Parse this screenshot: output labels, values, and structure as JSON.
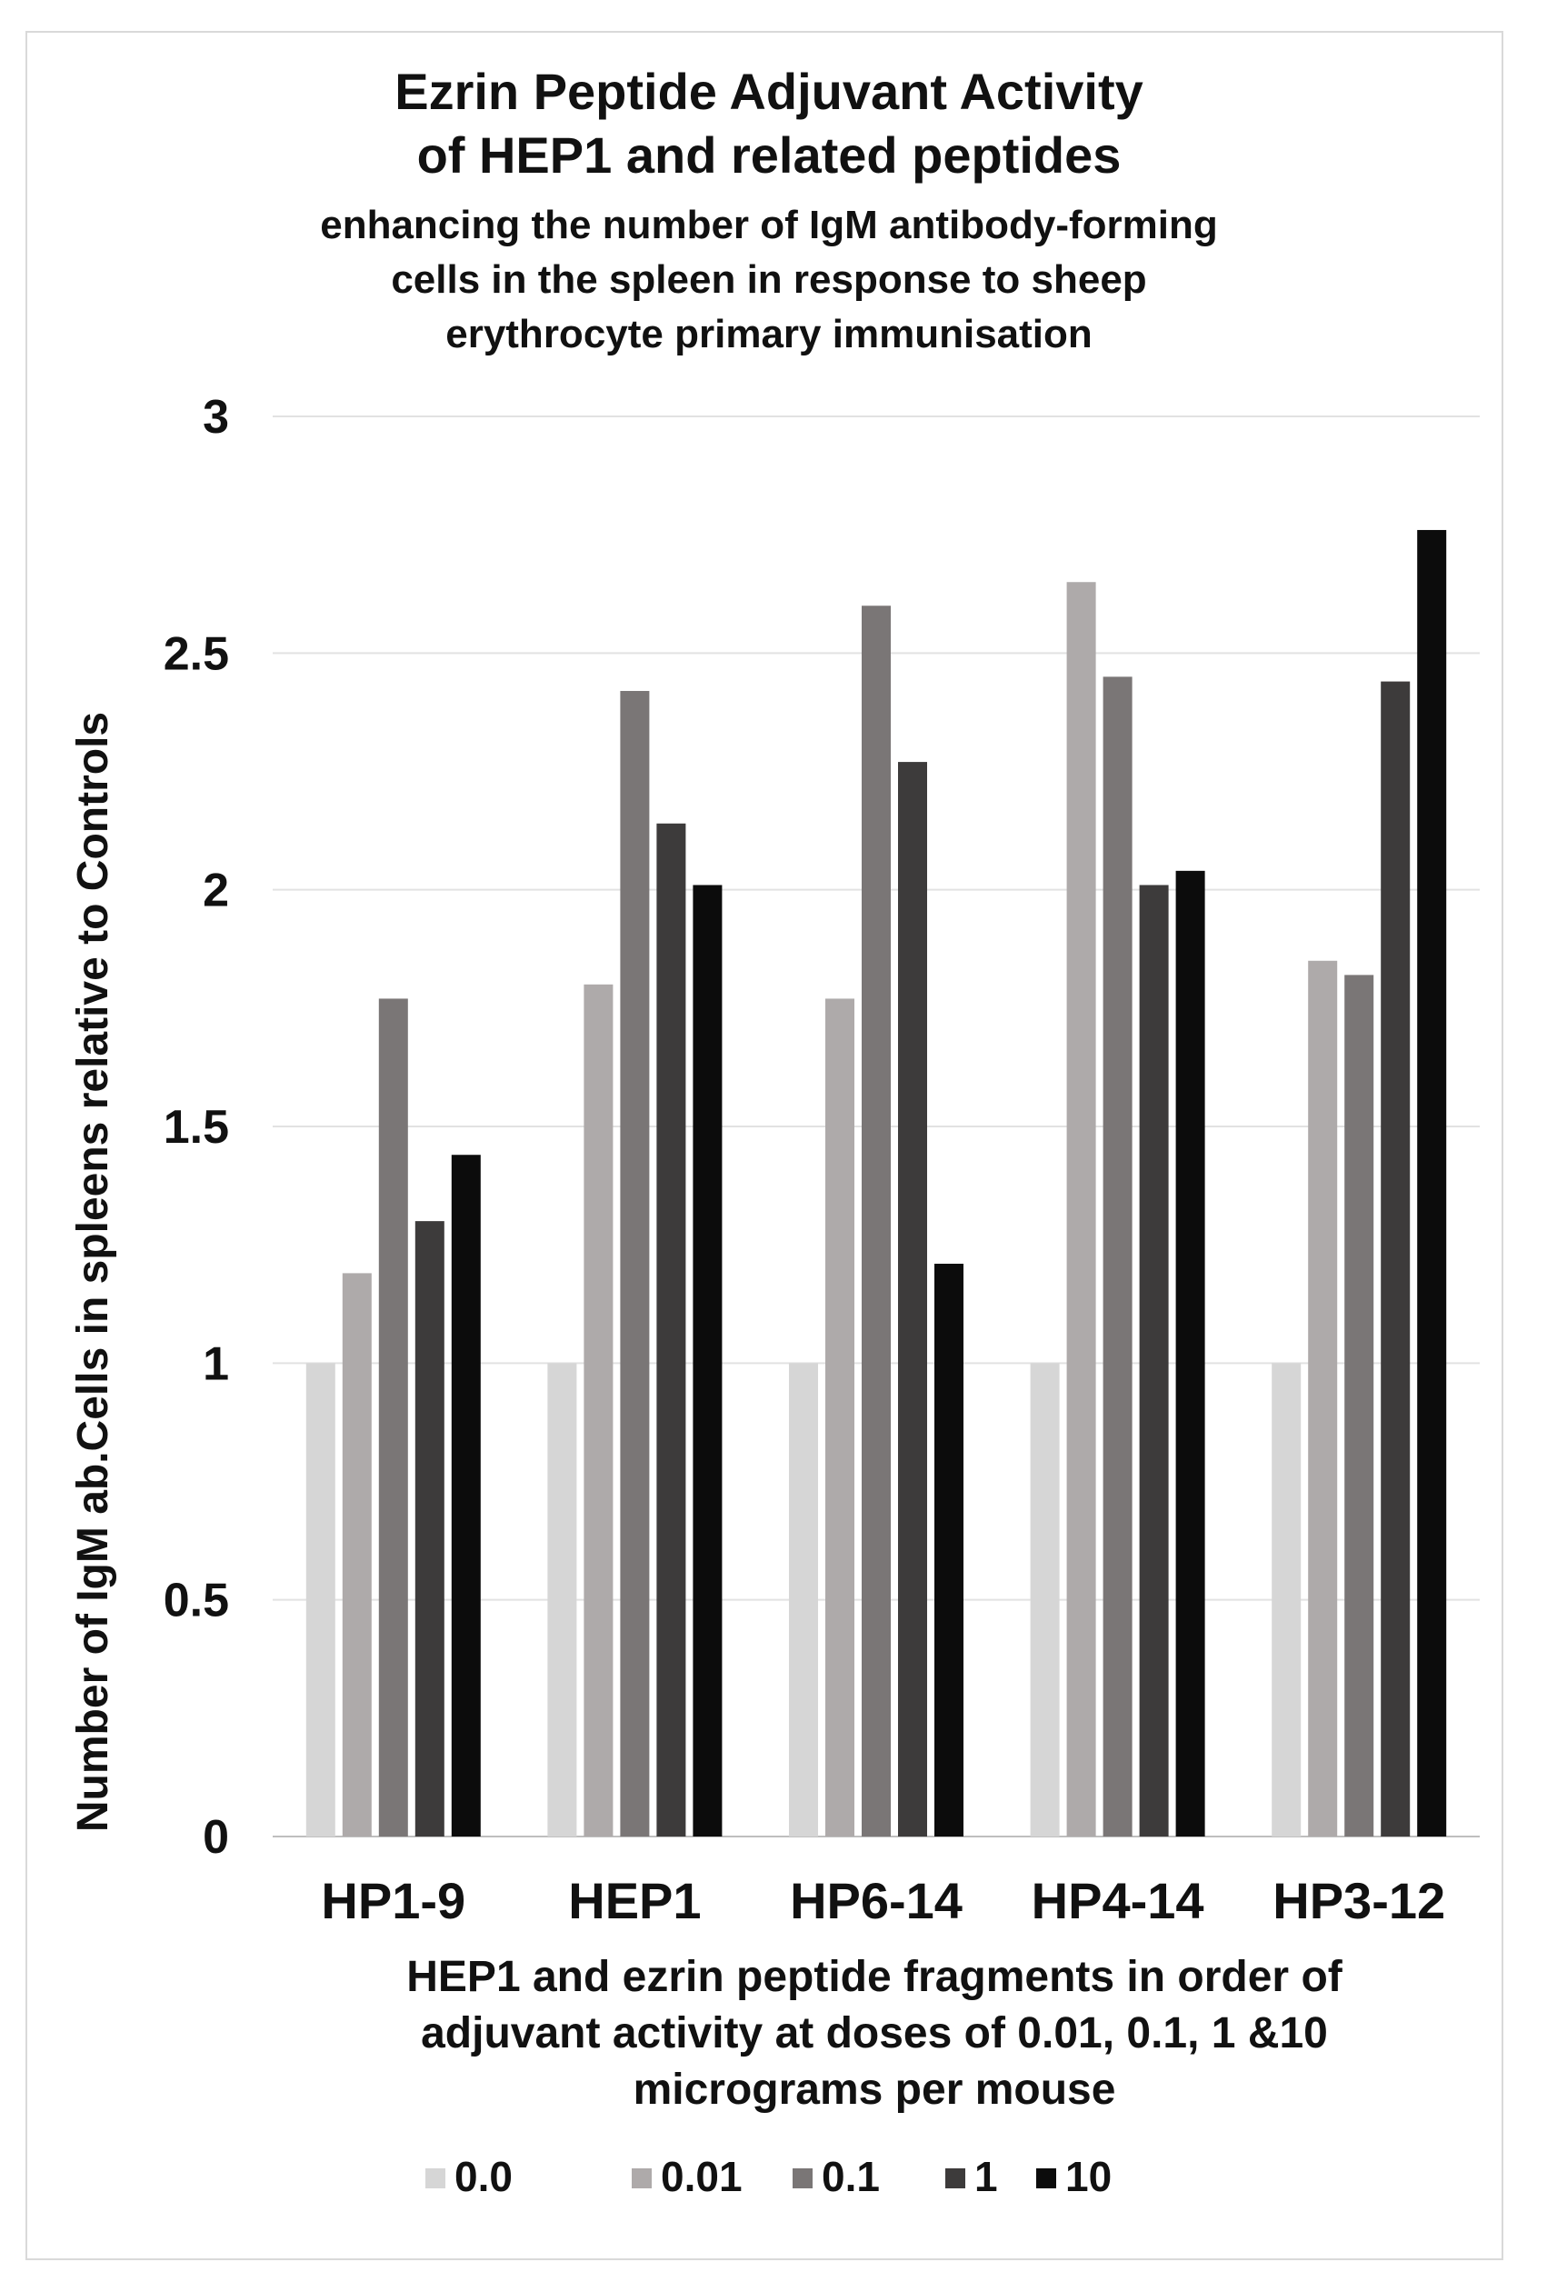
{
  "chart_data": {
    "type": "bar",
    "title": [
      "Ezrin Peptide Adjuvant Activity",
      "of HEP1 and related peptides"
    ],
    "subtitle": [
      "enhancing the number of IgM antibody-forming",
      "cells in the spleen in response to sheep",
      "erythrocyte primary immunisation"
    ],
    "ylabel": "Number of IgM ab.Cells in spleens  relative to Controls",
    "xlabel": [
      "HEP1 and ezrin peptide fragments in order of",
      "adjuvant activity at doses of 0.01, 0.1, 1 &10",
      "micrograms per mouse"
    ],
    "categories": [
      "HP1-9",
      "HEP1",
      "HP6-14",
      "HP4-14",
      "HP3-12"
    ],
    "ylim": [
      0,
      3
    ],
    "yticks": [
      "0",
      "0.5",
      "1",
      "1.5",
      "2",
      "2.5",
      "3"
    ],
    "grid": true,
    "legend_position": "bottom",
    "series": [
      {
        "name": "0.0",
        "color": "#d6d6d6",
        "values": [
          1,
          1,
          1,
          1,
          1
        ]
      },
      {
        "name": "0.01",
        "color": "#aeaaaa",
        "values": [
          1.19,
          1.8,
          1.77,
          2.65,
          1.85
        ]
      },
      {
        "name": "0.1",
        "color": "#7a7676",
        "values": [
          1.77,
          2.42,
          2.6,
          2.45,
          1.82
        ]
      },
      {
        "name": "1",
        "color": "#3d3b3b",
        "values": [
          1.3,
          2.14,
          2.27,
          2.01,
          2.44
        ]
      },
      {
        "name": "10",
        "color": "#0c0c0c",
        "values": [
          1.44,
          2.01,
          1.21,
          2.04,
          2.76
        ]
      }
    ]
  }
}
